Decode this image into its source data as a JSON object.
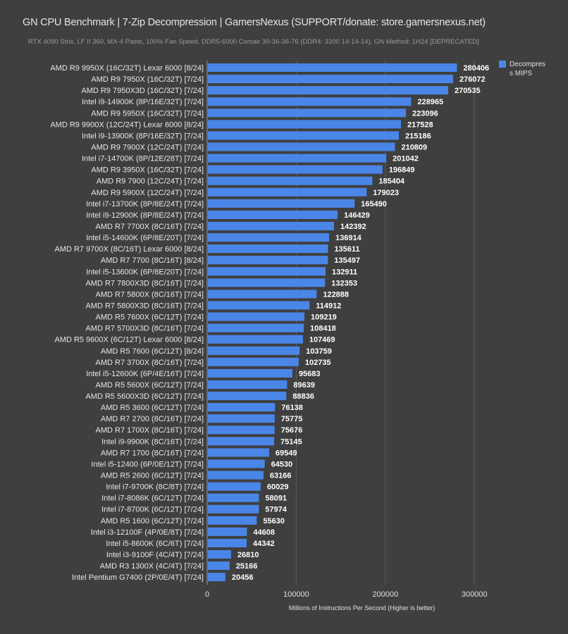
{
  "chart_data": {
    "type": "bar",
    "orientation": "horizontal",
    "title": "GN CPU Benchmark | 7-Zip Decompression | GamersNexus (SUPPORT/donate: store.gamersnexus.net)",
    "subtitle": "RTX 4090 Strix, LF II 360, MX-4 Paste, 100% Fan Speed, DDR5-6000 Corsair 30-36-36-76 (DDR4: 3200 14-14-14), GN Method: 1H24 [DEPRECATED]",
    "xlabel": "Millions of Instructions Per Second (Higher is better)",
    "ylabel": "",
    "xlim": [
      0,
      330000
    ],
    "xticks": [
      0,
      100000,
      200000,
      300000
    ],
    "grid": true,
    "legend_position": "top-right",
    "bar_color": "#4a86e8",
    "series": [
      {
        "name": "Decompress MIPS",
        "legend_lines": [
          "Decompres",
          "s MIPS"
        ]
      }
    ],
    "categories": [
      "AMD R9 9950X (16C/32T) Lexar 6000 [8/24]",
      "AMD R9 7950X (16C/32T) [7/24]",
      "AMD R9 7950X3D (16C/32T) [7/24]",
      "Intel i9-14900K (8P/16E/32T) [7/24]",
      "AMD R9 5950X (16C/32T) [7/24]",
      "AMD R9 9900X (12C/24T) Lexar 6000 [8/24]",
      "Intel i9-13900K (8P/16E/32T) [7/24]",
      "AMD R9 7900X (12C/24T) [7/24]",
      "Intel i7-14700K (8P/12E/28T) [7/24]",
      "AMD R9 3950X (16C/32T) [7/24]",
      "AMD R9 7900 (12C/24T) [7/24]",
      "AMD R9 5900X (12C/24T) [7/24]",
      "Intel i7-13700K (8P/8E/24T) [7/24]",
      "Intel i9-12900K (8P/8E/24T) [7/24]",
      "AMD R7 7700X (8C/16T) [7/24]",
      "Intel i5-14600K (6P/8E/20T) [7/24]",
      "AMD R7 9700X (8C/16T) Lexar 6000 [8/24]",
      "AMD R7 7700 (8C/16T) [8/24]",
      "Intel i5-13600K (6P/8E/20T) [7/24]",
      "AMD R7 7800X3D (8C/16T) [7/24]",
      "AMD R7 5800X (8C/16T) [7/24]",
      "AMD R7 5800X3D (8C/16T) [7/24]",
      "AMD R5 7600X (6C/12T) [7/24]",
      "AMD R7 5700X3D (8C/16T) [7/24]",
      "AMD R5 9600X (6C/12T) Lexar 6000 [8/24]",
      "AMD R5 7600 (6C/12T) [8/24]",
      "AMD R7 3700X (8C/16T) [7/24]",
      "Intel i5-12600K (6P/4E/16T) [7/24]",
      "AMD R5 5600X (6C/12T) [7/24]",
      "AMD R5 5600X3D (6C/12T) [7/24]",
      "AMD R5 3600 (6C/12T) [7/24]",
      "AMD R7 2700 (8C/16T) [7/24]",
      "AMD R7 1700X (8C/16T) [7/24]",
      "Intel i9-9900K (8C/16T) [7/24]",
      "AMD R7 1700 (8C/16T) [7/24]",
      "Intel i5-12400 (6P/0E/12T) [7/24]",
      "AMD R5 2600 (6C/12T) [7/24]",
      "Intel i7-9700K (8C/8T) [7/24]",
      "Intel i7-8086K (6C/12T) [7/24]",
      "Intel i7-8700K (6C/12T) [7/24]",
      "AMD R5 1600 (6C/12T) [7/24]",
      "Intel i3-12100F (4P/0E/8T) [7/24]",
      "Intel i5-8600K (6C/6T) [7/24]",
      "Intel i3-9100F (4C/4T) [7/24]",
      "AMD R3 1300X (4C/4T) [7/24]",
      "Intel Pentium G7400 (2P/0E/4T) [7/24]"
    ],
    "values": [
      280406,
      276072,
      270535,
      228965,
      223096,
      217528,
      215186,
      210809,
      201042,
      196849,
      185404,
      179023,
      165490,
      146429,
      142392,
      136914,
      135611,
      135497,
      132911,
      132353,
      122888,
      114912,
      109219,
      108418,
      107469,
      103759,
      102735,
      95683,
      89639,
      88836,
      76138,
      75775,
      75676,
      75145,
      69549,
      64530,
      63166,
      60029,
      58091,
      57974,
      55630,
      44608,
      44342,
      26810,
      25166,
      20456
    ]
  }
}
